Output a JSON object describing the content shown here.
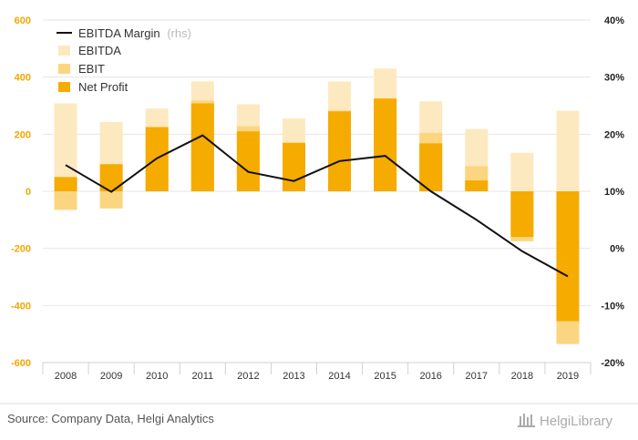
{
  "chart_data": {
    "type": "bar",
    "categories": [
      "2008",
      "2009",
      "2010",
      "2011",
      "2012",
      "2013",
      "2014",
      "2015",
      "2016",
      "2017",
      "2018",
      "2019"
    ],
    "series": [
      {
        "name": "EBITDA",
        "values": [
          308,
          243,
          290,
          385,
          305,
          255,
          385,
          430,
          315,
          218,
          135,
          282
        ],
        "color": "#fde9bf"
      },
      {
        "name": "EBIT",
        "values": [
          -65,
          -60,
          225,
          318,
          228,
          168,
          283,
          325,
          205,
          88,
          -175,
          -535
        ],
        "color": "#fcd580"
      },
      {
        "name": "Net Profit",
        "values": [
          50,
          95,
          225,
          308,
          210,
          170,
          280,
          325,
          168,
          38,
          -160,
          -455
        ],
        "color": "#f5ab00"
      },
      {
        "name": "EBITDA Margin",
        "axis": "right",
        "values": [
          14.6,
          9.9,
          15.8,
          19.8,
          13.4,
          11.8,
          15.3,
          16.2,
          10.0,
          5.0,
          -0.5,
          -4.9
        ],
        "color": "#111111"
      }
    ],
    "legend": {
      "margin_label": "EBITDA Margin",
      "margin_suffix": "(rhs)",
      "ebitda_label": "EBITDA",
      "ebit_label": "EBIT",
      "net_profit_label": "Net Profit"
    },
    "ylim": [
      -600,
      600
    ],
    "y_ticks": [
      "600",
      "400",
      "200",
      "0",
      "-200",
      "-400",
      "-600"
    ],
    "y2lim": [
      -20,
      40
    ],
    "y2_ticks": [
      "40%",
      "30%",
      "20%",
      "10%",
      "0%",
      "-10%",
      "-20%"
    ],
    "grid": true
  },
  "footer": {
    "source": "Source: Company Data, Helgi Analytics",
    "brand": "HelgiLibrary"
  }
}
